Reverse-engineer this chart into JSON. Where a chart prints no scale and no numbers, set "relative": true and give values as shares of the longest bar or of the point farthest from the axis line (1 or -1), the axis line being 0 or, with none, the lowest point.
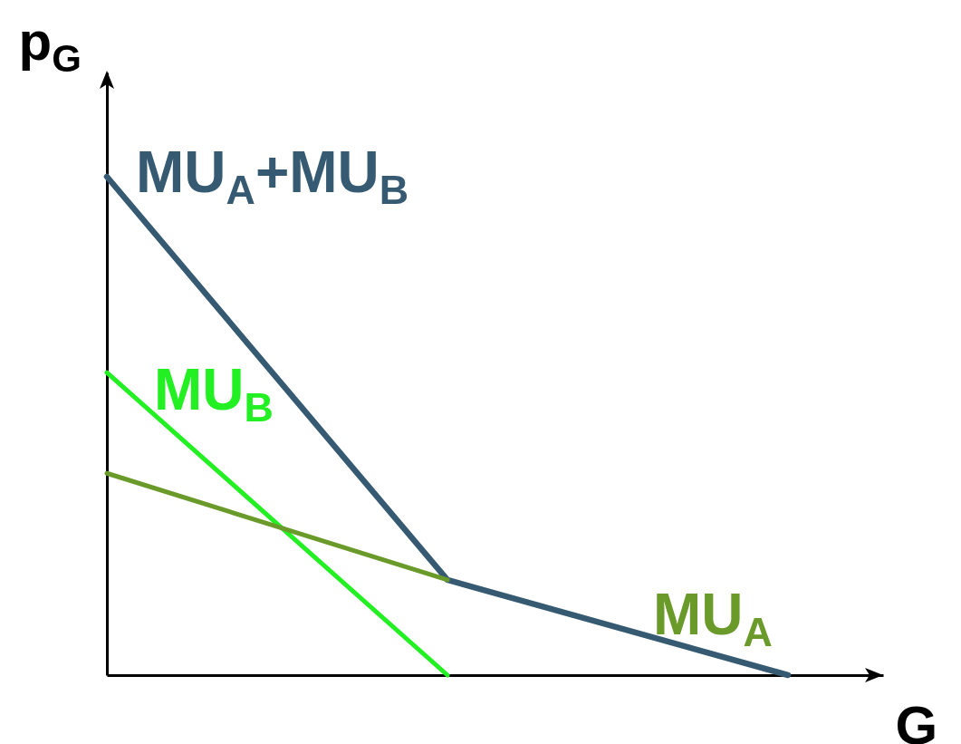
{
  "chart_data": {
    "type": "line",
    "xlabel": "G",
    "ylabel": "p$_{G}$",
    "categories": [
      null,
      null,
      null
    ],
    "relative": true,
    "tick_labels": false,
    "line_style": "solid",
    "series": [
      {
        "name": "MU$_{A}$+MU$_{B}$",
        "color": "#355a72",
        "values": [
          1,
          0.191,
          0
        ]
      },
      {
        "name": "MU$_{B}$",
        "color": "#22f022",
        "values": [
          0.607,
          0,
          null
        ]
      },
      {
        "name": "MU$_{A}$",
        "color": "#6a9a2a",
        "values": [
          0.405,
          0.191,
          null
        ]
      }
    ]
  }
}
